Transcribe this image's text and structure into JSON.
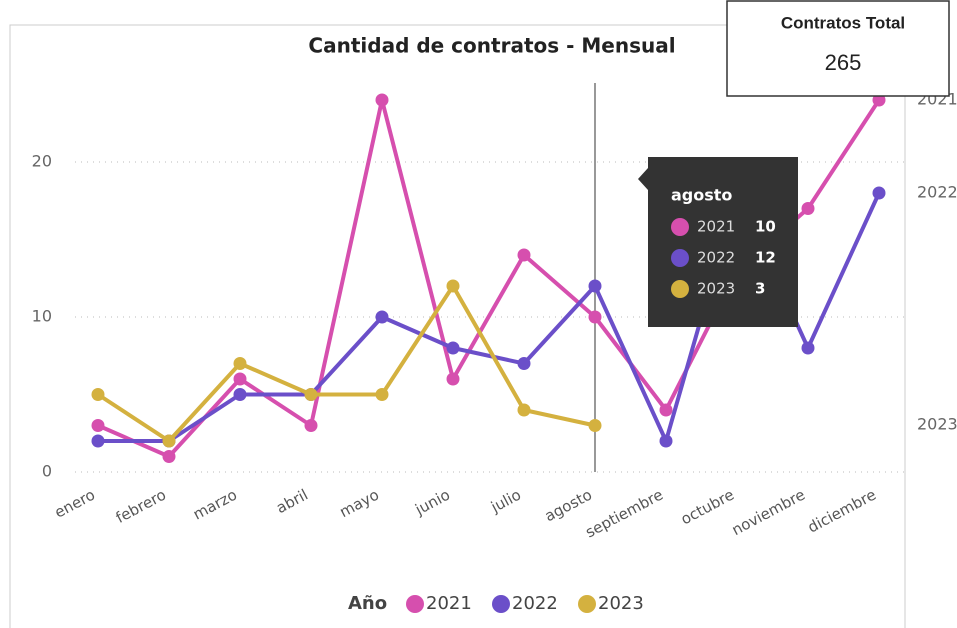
{
  "chart_data": {
    "type": "line",
    "title": "Cantidad de contratos - Mensual",
    "categories": [
      "enero",
      "febrero",
      "marzo",
      "abril",
      "mayo",
      "junio",
      "julio",
      "agosto",
      "septiembre",
      "octubre",
      "noviembre",
      "diciembre"
    ],
    "series": [
      {
        "name": "2021",
        "color": "#d64fae",
        "values": [
          3,
          1,
          6,
          3,
          24,
          6,
          14,
          10,
          4,
          13,
          17,
          24
        ]
      },
      {
        "name": "2022",
        "color": "#6b4fc9",
        "values": [
          2,
          2,
          5,
          5,
          10,
          8,
          7,
          12,
          2,
          18,
          8,
          18
        ]
      },
      {
        "name": "2023",
        "color": "#d4b13f",
        "values": [
          5,
          2,
          7,
          5,
          5,
          12,
          4,
          3,
          null,
          null,
          null,
          null
        ]
      }
    ],
    "ylim": [
      0,
      25
    ],
    "yticks": [
      0,
      10,
      20
    ],
    "grid": true,
    "legend_title": "Año",
    "legend": "bottom",
    "tooltip_index": 7
  },
  "card": {
    "title": "Contratos Total",
    "value": "265"
  }
}
